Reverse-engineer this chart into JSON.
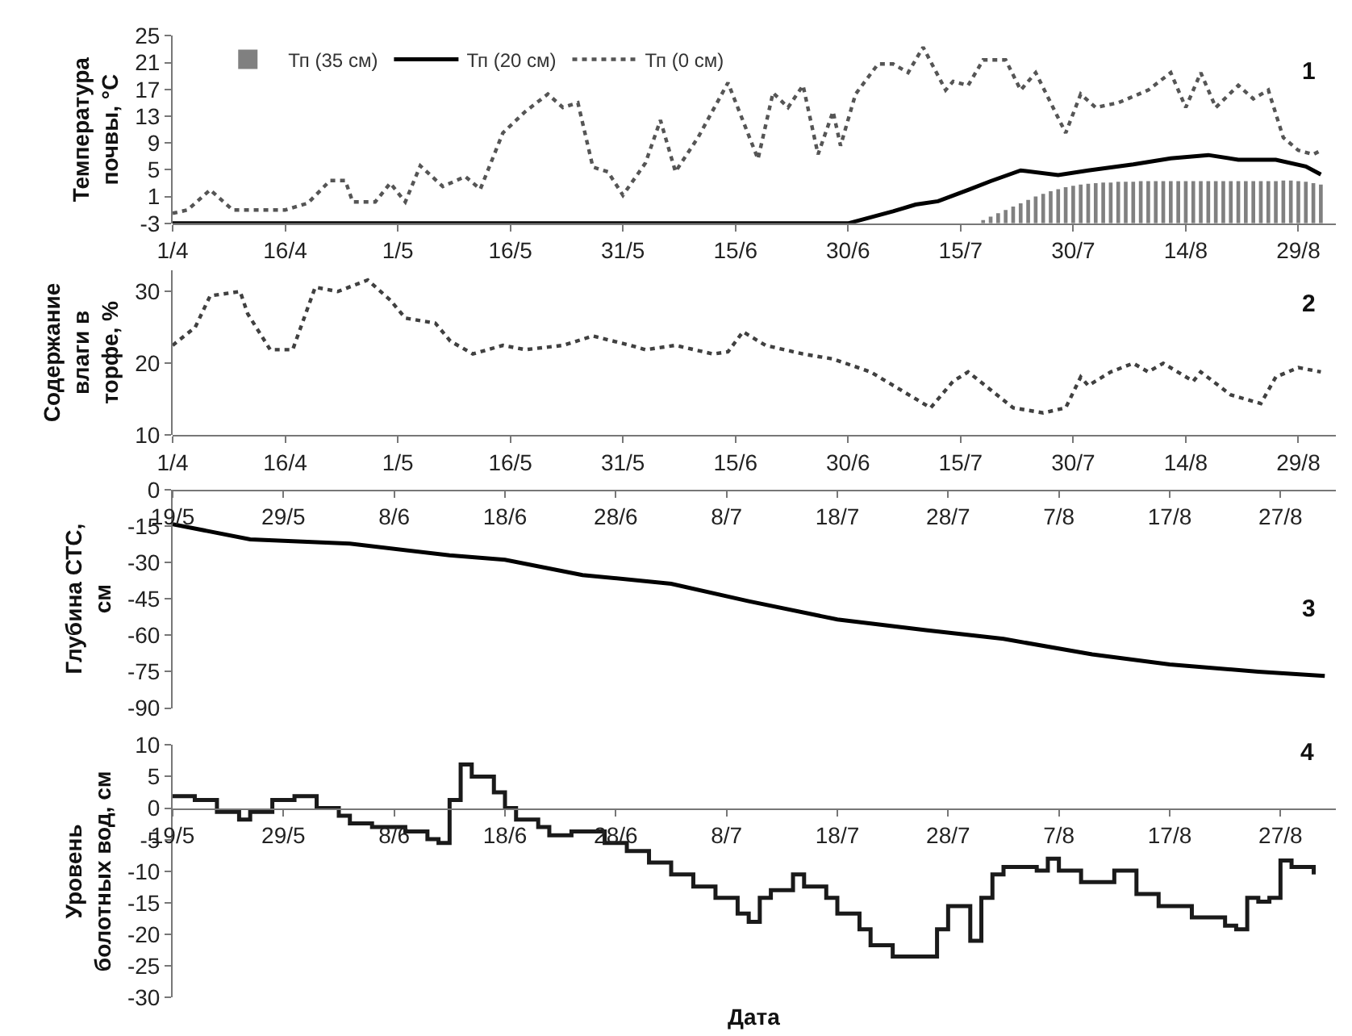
{
  "chart_data": [
    {
      "type": "line",
      "ylabel": "Температура\nпочвы, °С",
      "annotations": [
        "1"
      ],
      "legend": "top left",
      "xlim": [
        "--04-01",
        "--09-03"
      ],
      "xticks": [
        {
          "value": "--04-01",
          "label": "1/4"
        },
        {
          "value": "--04-16",
          "label": "16/4"
        },
        {
          "value": "--05-01",
          "label": "1/5"
        },
        {
          "value": "--05-16",
          "label": "16/5"
        },
        {
          "value": "--05-31",
          "label": "31/5"
        },
        {
          "value": "--06-15",
          "label": "15/6"
        },
        {
          "value": "--06-30",
          "label": "30/6"
        },
        {
          "value": "--07-15",
          "label": "15/7"
        },
        {
          "value": "--07-30",
          "label": "30/7"
        },
        {
          "value": "--08-14",
          "label": "14/8"
        },
        {
          "value": "--08-29",
          "label": "29/8"
        }
      ],
      "ylim": [
        -3,
        25
      ],
      "yticks": [
        -3,
        1,
        5,
        9,
        13,
        17,
        21,
        25
      ],
      "series": [
        {
          "name": "Тп (35 см)",
          "type": "bar",
          "color": "#808080",
          "x": [
            "--07-18",
            "--07-19",
            "--07-20",
            "--07-21",
            "--07-22",
            "--07-23",
            "--07-24",
            "--07-25",
            "--07-26",
            "--07-27",
            "--07-28",
            "--07-29",
            "--07-30",
            "--07-31",
            "--08-01",
            "--08-02",
            "--08-03",
            "--08-04",
            "--08-05",
            "--08-06",
            "--08-07",
            "--08-08",
            "--08-09",
            "--08-10",
            "--08-11",
            "--08-12",
            "--08-13",
            "--08-14",
            "--08-15",
            "--08-16",
            "--08-17",
            "--08-18",
            "--08-19",
            "--08-20",
            "--08-21",
            "--08-22",
            "--08-23",
            "--08-24",
            "--08-25",
            "--08-26",
            "--08-27",
            "--08-28",
            "--08-29",
            "--08-30",
            "--08-31",
            "--09-01"
          ],
          "base": [
            -3,
            -3,
            -3,
            -3,
            -3,
            -3,
            -3,
            -3,
            -3,
            -3,
            -3,
            -3,
            -3,
            -3,
            -3,
            -3,
            -3,
            -3,
            -3,
            -3,
            -3,
            -3,
            -3,
            -3,
            -3,
            -3,
            -3,
            -3,
            -3,
            -3,
            -3,
            -3,
            -3,
            -3,
            -3,
            -3,
            -3,
            -3,
            -3,
            -3,
            -3,
            -3,
            -3,
            -3,
            -3,
            -3
          ],
          "values": [
            0.5,
            1,
            1.5,
            2,
            2.5,
            3,
            3.5,
            4,
            4.4,
            4.8,
            5.1,
            5.4,
            5.6,
            5.8,
            5.9,
            6,
            6.1,
            6.1,
            6.2,
            6.2,
            6.2,
            6.3,
            6.3,
            6.3,
            6.3,
            6.3,
            6.3,
            6.3,
            6.3,
            6.3,
            6.3,
            6.3,
            6.3,
            6.3,
            6.3,
            6.3,
            6.3,
            6.3,
            6.3,
            6.3,
            6.4,
            6.4,
            6.3,
            6.2,
            6,
            5.8
          ]
        },
        {
          "name": "Тп (20 см)",
          "type": "line",
          "color": "#000000",
          "line_style": "solid",
          "x": [
            "--04-01",
            "--06-27",
            "--06-30",
            "--07-06",
            "--07-09",
            "--07-12",
            "--07-16",
            "--07-19",
            "--07-23",
            "--07-28",
            "--08-01",
            "--08-07",
            "--08-12",
            "--08-17",
            "--08-21",
            "--08-26",
            "--08-30",
            "--09-01"
          ],
          "values": [
            -3,
            -3,
            -3,
            -1.2,
            -0.2,
            0.3,
            2,
            3.3,
            4.9,
            4.2,
            4.9,
            5.8,
            6.7,
            7.2,
            6.5,
            6.5,
            5.5,
            4.3
          ]
        },
        {
          "name": "Тп (0 см)",
          "type": "line",
          "color": "#555555",
          "line_style": "dotted",
          "x": [
            "--04-01",
            "--04-03",
            "--04-06",
            "--04-09",
            "--04-16",
            "--04-19",
            "--04-22",
            "--04-24",
            "--04-25",
            "--04-28",
            "--04-30",
            "--05-02",
            "--05-04",
            "--05-07",
            "--05-10",
            "--05-12",
            "--05-15",
            "--05-18",
            "--05-21",
            "--05-23",
            "--05-25",
            "--05-27",
            "--05-29",
            "--05-31",
            "--06-03",
            "--06-05",
            "--06-07",
            "--06-10",
            "--06-14",
            "--06-18",
            "--06-20",
            "--06-22",
            "--06-24",
            "--06-26",
            "--06-28",
            "--06-29",
            "--07-01",
            "--07-04",
            "--07-06",
            "--07-08",
            "--07-10",
            "--07-13",
            "--07-14",
            "--07-16",
            "--07-18",
            "--07-21",
            "--07-23",
            "--07-25",
            "--07-27",
            "--07-29",
            "--07-31",
            "--08-02",
            "--08-05",
            "--08-09",
            "--08-12",
            "--08-14",
            "--08-16",
            "--08-18",
            "--08-21",
            "--08-23",
            "--08-25",
            "--08-27",
            "--08-29",
            "--08-31",
            "--09-01"
          ],
          "values": [
            -1.5,
            -1,
            2,
            -1,
            -1,
            0,
            3.4,
            3.4,
            0.2,
            0.2,
            3,
            0.2,
            5.6,
            2.5,
            4,
            2.1,
            10.5,
            13.7,
            16.3,
            14.3,
            15,
            5.4,
            4.7,
            1.2,
            6,
            12.4,
            4.7,
            9.8,
            18,
            6.6,
            16.5,
            14.3,
            17.6,
            7.3,
            13.7,
            8.6,
            16.3,
            20.8,
            20.8,
            19.5,
            23.3,
            16.9,
            18.2,
            17.6,
            21.4,
            21.4,
            16.9,
            19.5,
            15,
            10.5,
            16.3,
            14.3,
            15,
            16.9,
            19.5,
            14.3,
            19.5,
            14.3,
            17.6,
            15.6,
            16.9,
            9.8,
            7.9,
            7.3,
            7.9
          ]
        }
      ]
    },
    {
      "type": "line",
      "ylabel": "Содержание\nвлаги в\nторфе, %",
      "annotations": [
        "2"
      ],
      "xlim": [
        "--04-01",
        "--09-03"
      ],
      "xticks": [
        {
          "value": "--04-01",
          "label": "1/4"
        },
        {
          "value": "--04-16",
          "label": "16/4"
        },
        {
          "value": "--05-01",
          "label": "1/5"
        },
        {
          "value": "--05-16",
          "label": "16/5"
        },
        {
          "value": "--05-31",
          "label": "31/5"
        },
        {
          "value": "--06-15",
          "label": "15/6"
        },
        {
          "value": "--06-30",
          "label": "30/6"
        },
        {
          "value": "--07-15",
          "label": "15/7"
        },
        {
          "value": "--07-30",
          "label": "30/7"
        },
        {
          "value": "--08-14",
          "label": "14/8"
        },
        {
          "value": "--08-29",
          "label": "29/8"
        }
      ],
      "ylim": [
        10,
        33
      ],
      "yticks": [
        10,
        20,
        30
      ],
      "series": [
        {
          "color": "#404040",
          "line_style": "dotted",
          "x": [
            "--04-01",
            "--04-04",
            "--04-06",
            "--04-10",
            "--04-11",
            "--04-14",
            "--04-17",
            "--04-20",
            "--04-23",
            "--04-27",
            "--04-30",
            "--05-02",
            "--05-06",
            "--05-08",
            "--05-11",
            "--05-15",
            "--05-18",
            "--05-23",
            "--05-27",
            "--06-01",
            "--06-03",
            "--06-07",
            "--06-12",
            "--06-14",
            "--06-16",
            "--06-19",
            "--06-24",
            "--06-28",
            "--07-03",
            "--07-07",
            "--07-11",
            "--07-14",
            "--07-16",
            "--07-19",
            "--07-22",
            "--07-26",
            "--07-29",
            "--07-31",
            "--08-01",
            "--08-04",
            "--08-07",
            "--08-09",
            "--08-11",
            "--08-15",
            "--08-16",
            "--08-20",
            "--08-24",
            "--08-26",
            "--08-29",
            "--09-01"
          ],
          "values": [
            22.5,
            25,
            29.4,
            30,
            26.9,
            21.9,
            21.9,
            30.6,
            30,
            31.6,
            28.8,
            26.3,
            25.6,
            23.1,
            21.3,
            22.5,
            21.9,
            22.5,
            23.8,
            22.5,
            21.9,
            22.5,
            21.3,
            21.6,
            24.4,
            22.5,
            21.3,
            20.6,
            18.8,
            16.3,
            13.8,
            17.5,
            18.8,
            16.3,
            13.8,
            13.1,
            13.8,
            18.1,
            16.9,
            18.8,
            20,
            18.8,
            20,
            17.5,
            18.8,
            15.6,
            14.4,
            18.1,
            19.4,
            18.8
          ]
        }
      ]
    },
    {
      "type": "line",
      "ylabel": "Глубина СТС,\nсм",
      "annotations": [
        "3"
      ],
      "xlim": [
        "--05-19",
        "--09-01"
      ],
      "xticks": [
        {
          "value": "--05-19",
          "label": "19/5"
        },
        {
          "value": "--05-29",
          "label": "29/5"
        },
        {
          "value": "--06-08",
          "label": "8/6"
        },
        {
          "value": "--06-18",
          "label": "18/6"
        },
        {
          "value": "--06-28",
          "label": "28/6"
        },
        {
          "value": "--07-08",
          "label": "8/7"
        },
        {
          "value": "--07-18",
          "label": "18/7"
        },
        {
          "value": "--07-28",
          "label": "28/7"
        },
        {
          "value": "--08-07",
          "label": "7/8"
        },
        {
          "value": "--08-17",
          "label": "17/8"
        },
        {
          "value": "--08-27",
          "label": "27/8"
        }
      ],
      "ylim": [
        -90,
        0
      ],
      "yticks": [
        0,
        -15,
        -30,
        -45,
        -60,
        -75,
        -90
      ],
      "series": [
        {
          "color": "#000000",
          "line_style": "solid",
          "x": [
            "--05-19",
            "--05-26",
            "--06-04",
            "--06-13",
            "--06-18",
            "--06-25",
            "--07-03",
            "--07-10",
            "--07-18",
            "--07-26",
            "--08-02",
            "--08-10",
            "--08-17",
            "--08-25",
            "--08-31"
          ],
          "values": [
            -14.3,
            -20.5,
            -22.3,
            -27.1,
            -28.9,
            -35.2,
            -38.8,
            -46,
            -53.5,
            -57.9,
            -61.5,
            -67.9,
            -72,
            -75,
            -76.8
          ]
        }
      ]
    },
    {
      "type": "step",
      "ylabel": "Уровень\nболотных вод, см",
      "xlabel": "Дата",
      "annotations": [
        "4"
      ],
      "xlim": [
        "--05-19",
        "--09-01"
      ],
      "xticks": [
        {
          "value": "--05-19",
          "label": "19/5"
        },
        {
          "value": "--05-29",
          "label": "29/5"
        },
        {
          "value": "--06-08",
          "label": "8/6"
        },
        {
          "value": "--06-18",
          "label": "18/6"
        },
        {
          "value": "--06-28",
          "label": "28/6"
        },
        {
          "value": "--07-08",
          "label": "8/7"
        },
        {
          "value": "--07-18",
          "label": "18/7"
        },
        {
          "value": "--07-28",
          "label": "28/7"
        },
        {
          "value": "--08-07",
          "label": "7/8"
        },
        {
          "value": "--08-17",
          "label": "17/8"
        },
        {
          "value": "--08-27",
          "label": "27/8"
        }
      ],
      "ylim": [
        -30,
        10
      ],
      "yticks": [
        -30,
        -25,
        -20,
        -15,
        -10,
        -5,
        0,
        5,
        10
      ],
      "series": [
        {
          "color": "#1a1a1a",
          "line_style": "solid",
          "x": [
            "--05-19",
            "--05-21",
            "--05-23",
            "--05-25",
            "--05-26",
            "--05-28",
            "--05-30",
            "--06-01",
            "--06-03",
            "--06-04",
            "--06-06",
            "--06-09",
            "--06-11",
            "--06-12",
            "--06-13",
            "--06-14",
            "--06-15",
            "--06-17",
            "--06-18",
            "--06-19",
            "--06-21",
            "--06-22",
            "--06-24",
            "--06-27",
            "--06-29",
            "--07-01",
            "--07-03",
            "--07-05",
            "--07-07",
            "--07-09",
            "--07-10",
            "--07-11",
            "--07-12",
            "--07-14",
            "--07-15",
            "--07-17",
            "--07-18",
            "--07-20",
            "--07-21",
            "--07-23",
            "--07-26",
            "--07-27",
            "--07-28",
            "--07-30",
            "--07-31",
            "--08-01",
            "--08-02",
            "--08-05",
            "--08-06",
            "--08-07",
            "--08-09",
            "--08-11",
            "--08-12",
            "--08-14",
            "--08-16",
            "--08-19",
            "--08-22",
            "--08-23",
            "--08-24",
            "--08-25",
            "--08-26",
            "--08-27",
            "--08-28",
            "--08-30"
          ],
          "values": [
            1.9,
            1.3,
            -0.6,
            -1.8,
            -0.6,
            1.3,
            1.9,
            0,
            -1.2,
            -2.4,
            -3,
            -3.7,
            -4.9,
            -5.5,
            1.3,
            6.9,
            5,
            2.5,
            0,
            -1.8,
            -3,
            -4.3,
            -3.7,
            -5.5,
            -6.8,
            -8.6,
            -10.5,
            -12.4,
            -14.2,
            -16.7,
            -18,
            -14.2,
            -13,
            -10.5,
            -12.4,
            -14.2,
            -16.7,
            -19.2,
            -21.7,
            -23.5,
            -23.5,
            -19.2,
            -15.5,
            -21,
            -14.2,
            -10.5,
            -9.3,
            -9.9,
            -8,
            -9.9,
            -11.7,
            -11.7,
            -9.9,
            -13.6,
            -15.5,
            -17.3,
            -18.6,
            -19.2,
            -14.2,
            -14.8,
            -14.2,
            -8.3,
            -9.3,
            -10.5
          ]
        }
      ]
    }
  ]
}
